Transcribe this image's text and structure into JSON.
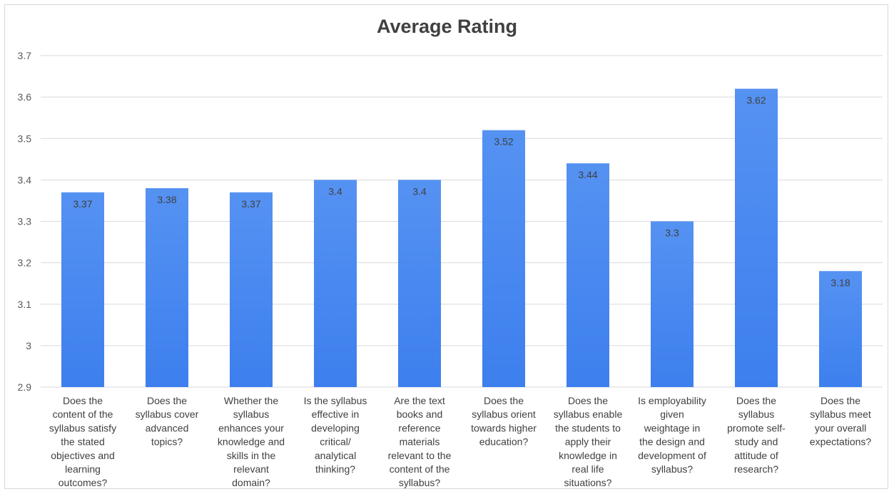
{
  "chart_data": {
    "type": "bar",
    "title": "Average Rating",
    "xlabel": "",
    "ylabel": "",
    "ylim": [
      2.9,
      3.7
    ],
    "yticks": [
      "2.9",
      "3",
      "3.1",
      "3.2",
      "3.3",
      "3.4",
      "3.5",
      "3.6",
      "3.7"
    ],
    "grid": true,
    "legend": "none",
    "bar_color": "#3d7fee",
    "bar_color_top": "#5592f2",
    "categories": [
      "Does the content of the syllabus satisfy the stated objectives and learning outcomes?",
      "Does the syllabus cover advanced topics?",
      "Whether the syllabus enhances your knowledge and skills in the relevant domain?",
      "Is the syllabus effective in developing critical/ analytical thinking?",
      "Are the text books and reference materials relevant to the content of the syllabus?",
      "Does the syllabus orient towards higher education?",
      "Does the syllabus enable the students to apply their knowledge in real life situations?",
      "Is employability given weightage in the design and development of syllabus?",
      "Does the syllabus promote self-study and attitude of research?",
      "Does the syllabus meet your overall expectations?"
    ],
    "category_lines": [
      [
        "Does the",
        "content of the",
        "syllabus satisfy",
        "the stated",
        "objectives and",
        "learning",
        "outcomes?"
      ],
      [
        "Does the",
        "syllabus cover",
        "advanced",
        "topics?"
      ],
      [
        "Whether the",
        "syllabus",
        "enhances your",
        "knowledge and",
        "skills in the",
        "relevant",
        "domain?"
      ],
      [
        "Is the syllabus",
        "effective in",
        "developing",
        "critical/",
        "analytical",
        "thinking?"
      ],
      [
        "Are the text",
        "books and",
        "reference",
        "materials",
        "relevant to the",
        "content of the",
        "syllabus?"
      ],
      [
        "Does the",
        "syllabus orient",
        "towards higher",
        "education?"
      ],
      [
        "Does the",
        "syllabus enable",
        "the students to",
        "apply their",
        "knowledge in",
        "real life",
        "situations?"
      ],
      [
        "Is employability",
        "given",
        "weightage in",
        "the design and",
        "development of",
        "syllabus?"
      ],
      [
        "Does the",
        "syllabus",
        "promote self-",
        "study and",
        "attitude of",
        "research?"
      ],
      [
        "Does the",
        "syllabus meet",
        "your overall",
        "expectations?"
      ]
    ],
    "values": [
      3.37,
      3.38,
      3.37,
      3.4,
      3.4,
      3.52,
      3.44,
      3.3,
      3.62,
      3.18
    ],
    "value_labels": [
      "3.37",
      "3.38",
      "3.37",
      "3.4",
      "3.4",
      "3.52",
      "3.44",
      "3.3",
      "3.62",
      "3.18"
    ]
  }
}
